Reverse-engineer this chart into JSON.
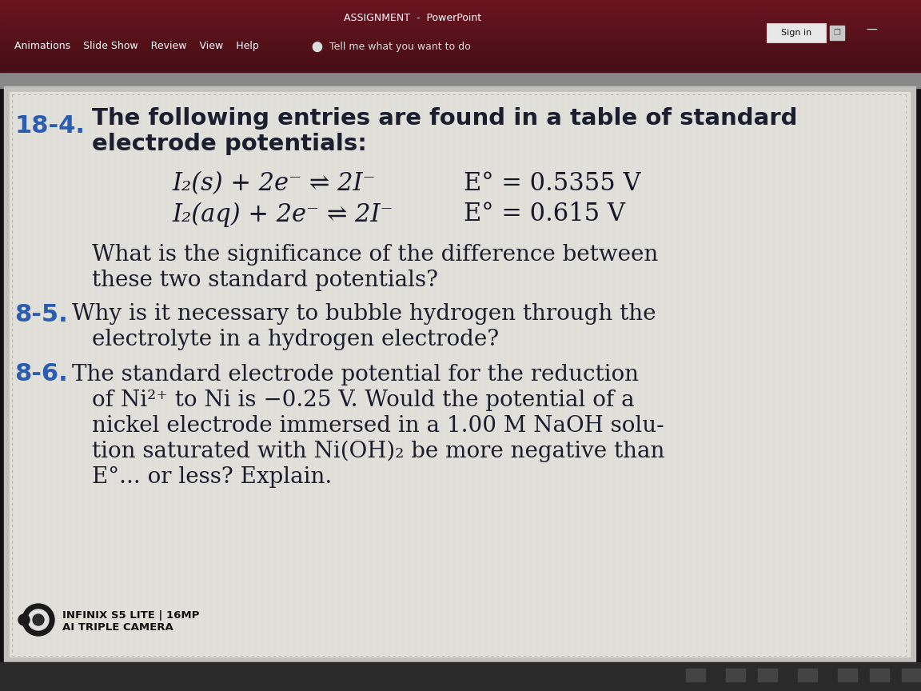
{
  "bg_color": "#1a1a1a",
  "top_bar_color": "#6b1520",
  "top_bar_color2": "#3d0a10",
  "toolbar_bg": "#7a1a28",
  "content_bg": "#dcdbd6",
  "content_area_color": "#e8e6e0",
  "title_bar_text": "ASSIGNMENT  -  PowerPoint",
  "menu_items_str": "Animations    Slide Show    Review    View    Help",
  "tell_me_str": "⬤  Tell me what you want to do",
  "sign_in_text": "Sign in",
  "question_number": "18-4.",
  "question_text_line1": "The following entries are found in a table of standard",
  "question_text_line2": "electrode potentials:",
  "eq1_left": "I₂(s) + 2e⁻ ⇌ 2I⁻",
  "eq1_right": "E° = 0.5355 V",
  "eq2_left": "I₂(aq) + 2e⁻ ⇌ 2I⁻",
  "eq2_right": "E° = 0.615 V",
  "followup_line1": "What is the significance of the difference between",
  "followup_line2": "these two standard potentials?",
  "q2_number": "8-5.",
  "q2_line1": "Why is it necessary to bubble hydrogen through the",
  "q2_line2": "electrolyte in a hydrogen electrode?",
  "q3_number": "8-6.",
  "q3_line1": "The standard electrode potential for the reduction",
  "q3_line2": "of Ni²⁺ to Ni is −0.25 V. Would the potential of a",
  "q3_line3": "nickel electrode immersed in a 1.00 M NaOH solu-",
  "q3_line4": "tion saturated with Ni(OH)₂ be more negative than",
  "q3_line5": "E°... or less? Explain.",
  "bottom_text1": "INFINIX S5 LITE | 16MP",
  "bottom_text2": "AI TRIPLE CAMERA",
  "blue_color": "#2a5db0",
  "dark_text": "#1a1e2e",
  "eq_text_color": "#15192a",
  "border_color": "#b8b6b0"
}
